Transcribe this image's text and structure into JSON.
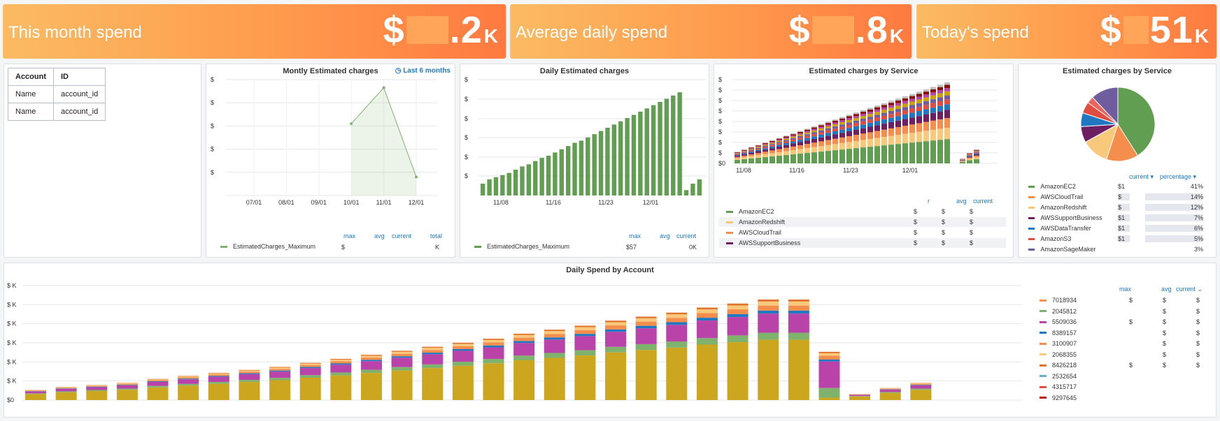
{
  "stats": [
    {
      "label": "This month spend",
      "prefix": "$",
      "suffix": ".2",
      "unit": "K"
    },
    {
      "label": "Average daily spend",
      "prefix": "$",
      "suffix": ".8",
      "unit": "K"
    },
    {
      "label": "Today's spend",
      "prefix": "$",
      "suffix": "51",
      "unit": "K"
    }
  ],
  "accounts": {
    "headers": [
      "Account",
      "ID"
    ],
    "rows": [
      [
        "Name",
        "account_id"
      ],
      [
        "Name",
        "account_id"
      ]
    ]
  },
  "monthly": {
    "title": "Montly Estimated charges",
    "time_range": "Last 6 months",
    "legend_name": "EstimatedCharges_Maximum",
    "headers": [
      "max",
      "avg",
      "current",
      "total"
    ],
    "legend_max": "$",
    "legend_total": "K",
    "chart_data": {
      "type": "area",
      "x": [
        "07/01",
        "08/01",
        "09/01",
        "10/01",
        "11/01",
        "12/01"
      ],
      "values": [
        null,
        null,
        null,
        0.62,
        0.93,
        0.16
      ],
      "y_tick_labels": [
        "$",
        "$",
        "$",
        "$",
        "$",
        "$"
      ],
      "series_color": "#7eb26d"
    }
  },
  "daily": {
    "title": "Daily Estimated charges",
    "legend_name": "EstimatedCharges_Maximum",
    "headers": [
      "max",
      "avg",
      "current"
    ],
    "legend_max": "$57",
    "legend_current": "0K",
    "chart_data": {
      "type": "bar",
      "x_ticks": [
        "11/08",
        "11/16",
        "11/23",
        "12/01"
      ],
      "y_tick_labels": [
        "$",
        "$",
        "$",
        "$",
        "$",
        "$"
      ],
      "values": [
        0.11,
        0.15,
        0.17,
        0.19,
        0.21,
        0.24,
        0.27,
        0.29,
        0.32,
        0.35,
        0.37,
        0.4,
        0.43,
        0.46,
        0.49,
        0.51,
        0.54,
        0.57,
        0.6,
        0.63,
        0.66,
        0.69,
        0.72,
        0.75,
        0.78,
        0.81,
        0.84,
        0.87,
        0.9,
        0.93,
        0.96,
        0.05,
        0.11,
        0.15
      ],
      "series_color": "#629e51"
    }
  },
  "by_service_bar": {
    "title": "Estimated charges by Service",
    "headers": [
      "r",
      "avg",
      "current"
    ],
    "legend": [
      {
        "name": "AmazonEC2",
        "color": "#629e51",
        "v1": "$",
        "v2": "$",
        "v3": "$"
      },
      {
        "name": "AmazonRedshift",
        "color": "#f9c97b",
        "v1": "$",
        "v2": "$",
        "v3": "$"
      },
      {
        "name": "AWSCloudTrail",
        "color": "#f58d4d",
        "v1": "$",
        "v2": "$",
        "v3": "$"
      },
      {
        "name": "AWSSupportBusiness",
        "color": "#6d1f62",
        "v1": "$",
        "v2": "$",
        "v3": "$"
      }
    ],
    "chart_data": {
      "type": "bar",
      "stacked": true,
      "x_ticks": [
        "11/08",
        "11/16",
        "11/23",
        "12/01"
      ],
      "y_tick_labels": [
        "$",
        "$",
        "$",
        "$",
        "$",
        "$",
        "$",
        "$",
        "$0"
      ],
      "totals": [
        0.1,
        0.12,
        0.14,
        0.16,
        0.18,
        0.2,
        0.22,
        0.24,
        0.26,
        0.28,
        0.3,
        0.32,
        0.34,
        0.36,
        0.38,
        0.4,
        0.42,
        0.44,
        0.46,
        0.48,
        0.5,
        0.52,
        0.54,
        0.56,
        0.58,
        0.6,
        0.62,
        0.64,
        0.66,
        0.68,
        0.7,
        0.04,
        0.09,
        0.12
      ],
      "segment_shares": [
        0.3,
        0.14,
        0.12,
        0.1,
        0.07,
        0.06,
        0.05,
        0.05,
        0.04,
        0.04,
        0.03
      ],
      "segment_colors": [
        "#629e51",
        "#f9c97b",
        "#f58d4d",
        "#6d1f62",
        "#1f78c1",
        "#e24d42",
        "#705da0",
        "#cca300",
        "#ba43a9",
        "#890f02",
        "#bfbfbf"
      ]
    }
  },
  "by_service_pie": {
    "title": "Estimated charges by Service",
    "headers": [
      "current",
      "percentage"
    ],
    "legend": [
      {
        "name": "AmazonEC2",
        "current": "$1",
        "pct": "41%",
        "color": "#629e51"
      },
      {
        "name": "AWSCloudTrail",
        "current": "$",
        "pct": "14%",
        "color": "#f58d4d"
      },
      {
        "name": "AmazonRedshift",
        "current": "$",
        "pct": "12%",
        "color": "#f9c97b"
      },
      {
        "name": "AWSSupportBusiness",
        "current": "$1",
        "pct": "7%",
        "color": "#6d1f62"
      },
      {
        "name": "AWSDataTransfer",
        "current": "$1",
        "pct": "6%",
        "color": "#1f78c1"
      },
      {
        "name": "AmazonS3",
        "current": "$1",
        "pct": "5%",
        "color": "#e24d42"
      },
      {
        "name": "AmazonSageMaker",
        "current": "",
        "pct": "3%",
        "color": "#705da0"
      }
    ],
    "chart_data": {
      "type": "pie",
      "values": [
        41,
        14,
        12,
        7,
        6,
        5,
        3,
        12
      ],
      "colors": [
        "#629e51",
        "#f58d4d",
        "#f9c97b",
        "#6d1f62",
        "#1f78c1",
        "#e24d42",
        "#ea6460",
        "#705da0"
      ]
    }
  },
  "by_account": {
    "title": "Daily Spend by Account",
    "headers": [
      "max",
      "avg",
      "current"
    ],
    "legend": [
      {
        "name": "7018934",
        "color": "#f9934e",
        "v1": "$",
        "v2": "$",
        "v3": "$"
      },
      {
        "name": "2045812",
        "color": "#7eb26d",
        "v1": "",
        "v2": "$",
        "v3": "$"
      },
      {
        "name": "5509036",
        "color": "#ba43a9",
        "v1": "$",
        "v2": "$",
        "v3": "$"
      },
      {
        "name": "8389157",
        "color": "#1f78c1",
        "v1": "",
        "v2": "$",
        "v3": "$"
      },
      {
        "name": "3100907",
        "color": "#f58d4d",
        "v1": "",
        "v2": "$",
        "v3": "$"
      },
      {
        "name": "2068355",
        "color": "#f9c97b",
        "v1": "",
        "v2": "$",
        "v3": "$"
      },
      {
        "name": "8426218",
        "color": "#e0752d",
        "v1": "$",
        "v2": "$",
        "v3": "$"
      },
      {
        "name": "2532654",
        "color": "#64b0c8",
        "v1": "",
        "v2": "",
        "v3": ""
      },
      {
        "name": "4315717",
        "color": "#e24d42",
        "v1": "",
        "v2": "",
        "v3": ""
      },
      {
        "name": "9297645",
        "color": "#bf1b00",
        "v1": "",
        "v2": "",
        "v3": ""
      }
    ],
    "chart_data": {
      "type": "bar",
      "stacked": true,
      "y_tick_labels": [
        "$ K",
        "$ K",
        "$ K",
        "$ K",
        "$ K",
        "$ K",
        "$0"
      ],
      "totals": [
        0.1,
        0.13,
        0.15,
        0.17,
        0.21,
        0.24,
        0.27,
        0.3,
        0.33,
        0.37,
        0.41,
        0.45,
        0.49,
        0.53,
        0.57,
        0.61,
        0.66,
        0.7,
        0.74,
        0.79,
        0.83,
        0.87,
        0.92,
        0.96,
        1.0,
        1.0,
        0.48,
        0.06,
        0.12,
        0.17
      ],
      "segment_shares": [
        0.6,
        0.07,
        0.19,
        0.03,
        0.05,
        0.04,
        0.02
      ],
      "segment_colors": [
        "#cca61f",
        "#7eb26d",
        "#ba43a9",
        "#1f78c1",
        "#f58d4d",
        "#f9c97b",
        "#e0752d"
      ]
    }
  }
}
